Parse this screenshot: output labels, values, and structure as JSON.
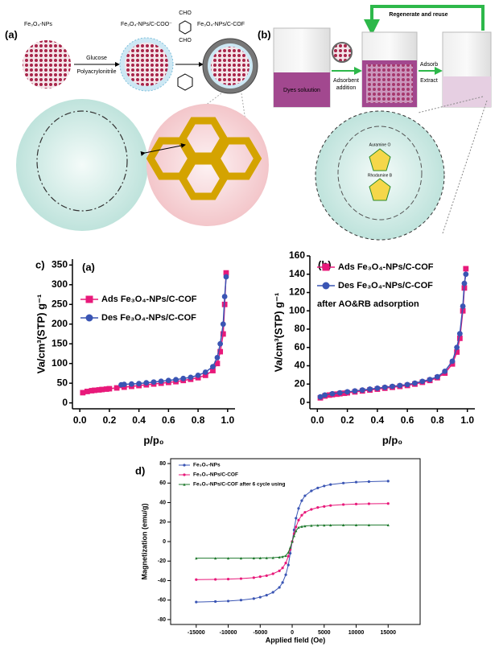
{
  "schematic": {
    "panel_a": "(a)",
    "core_label": "Fe₃O₄-NPs",
    "step1_top": "Glucose",
    "step1_bottom": "Polyacrylonitrile",
    "coated_label": "Fe₃O₄-NPs/C-COO⁻",
    "cof_label": "Fe₃O₄-NPs/C-COF",
    "aldehyde_top": "CHO",
    "aldehyde_bottom": "CHO",
    "panel_b": "(b)",
    "regenerate": "Regenerate and reuse",
    "dye_solution": "Dyes soluution",
    "adsorbent_1": "Adsorbent",
    "adsorbent_2": "addition",
    "adsorb": "Adsorb",
    "extract": "Extract",
    "dye_1": "Auramine O",
    "dye_2": "Rhodamine B"
  },
  "chart_data": [
    {
      "type": "line",
      "figure_label": "c)",
      "panel_label": "(a)",
      "frame": "axes",
      "xlabel": "p/p₀",
      "ylabel": "Va/cm³(STP) g⁻¹",
      "xlim": [
        -0.05,
        1.05
      ],
      "xticks": [
        {
          "value": 0,
          "label": "0.0"
        },
        0.2,
        0.4,
        0.6,
        0.8,
        {
          "value": 1,
          "label": "1.0"
        }
      ],
      "ylim": [
        -15,
        365
      ],
      "yticks": [
        0,
        50,
        100,
        150,
        200,
        250,
        300,
        350
      ],
      "series": [
        {
          "name": "Ads Fe₃O₄-NPs/C-COF",
          "color": "#e8197a",
          "marker": "square",
          "x": [
            0.02,
            0.05,
            0.08,
            0.1,
            0.13,
            0.15,
            0.18,
            0.2,
            0.25,
            0.3,
            0.35,
            0.4,
            0.45,
            0.5,
            0.55,
            0.6,
            0.65,
            0.7,
            0.75,
            0.8,
            0.85,
            0.9,
            0.93,
            0.95,
            0.97,
            0.98,
            0.99
          ],
          "values": [
            26,
            29,
            31,
            32,
            33,
            34,
            35,
            36,
            38,
            40,
            42,
            44,
            46,
            48,
            50,
            52,
            54,
            57,
            60,
            64,
            70,
            82,
            100,
            130,
            175,
            250,
            330
          ]
        },
        {
          "name": "Des Fe₃O₄-NPs/C-COF",
          "color": "#3a55b4",
          "marker": "circle",
          "x": [
            0.99,
            0.98,
            0.97,
            0.95,
            0.93,
            0.9,
            0.85,
            0.8,
            0.75,
            0.7,
            0.65,
            0.6,
            0.55,
            0.5,
            0.45,
            0.4,
            0.35,
            0.3,
            0.28
          ],
          "values": [
            320,
            270,
            200,
            150,
            115,
            92,
            78,
            70,
            65,
            62,
            59,
            57,
            55,
            53,
            51,
            49,
            48,
            47,
            46
          ]
        }
      ]
    },
    {
      "type": "line",
      "panel_label": "(b)",
      "frame": "axes",
      "annotation": "after AO&RB adsorption",
      "xlabel": "p/p₀",
      "ylabel": "Va/cm³(STP) g⁻¹",
      "xlim": [
        -0.05,
        1.05
      ],
      "xticks": [
        {
          "value": 0,
          "label": "0.0"
        },
        0.2,
        0.4,
        0.6,
        0.8,
        {
          "value": 1,
          "label": "1.0"
        }
      ],
      "ylim": [
        -7,
        160
      ],
      "yticks": [
        0,
        20,
        40,
        60,
        80,
        100,
        120,
        140,
        160
      ],
      "series": [
        {
          "name": "Ads Fe₃O₄-NPs/C-COF",
          "color": "#e8197a",
          "marker": "square",
          "x": [
            0.02,
            0.05,
            0.08,
            0.1,
            0.13,
            0.15,
            0.18,
            0.2,
            0.25,
            0.3,
            0.35,
            0.4,
            0.45,
            0.5,
            0.55,
            0.6,
            0.65,
            0.7,
            0.75,
            0.8,
            0.85,
            0.9,
            0.93,
            0.95,
            0.97,
            0.98,
            0.99
          ],
          "values": [
            5,
            7,
            8,
            8.5,
            9,
            9.5,
            10,
            10.5,
            11.5,
            12.5,
            13.5,
            14.5,
            15.5,
            16.5,
            17.5,
            18.5,
            20,
            22,
            24,
            27,
            32,
            42,
            55,
            70,
            100,
            125,
            146
          ]
        },
        {
          "name": "Des Fe₃O₄-NPs/C-COF",
          "color": "#3a55b4",
          "marker": "circle",
          "x": [
            0.99,
            0.98,
            0.97,
            0.95,
            0.93,
            0.9,
            0.85,
            0.8,
            0.75,
            0.7,
            0.65,
            0.6,
            0.55,
            0.5,
            0.45,
            0.4,
            0.35,
            0.3,
            0.25,
            0.2,
            0.15,
            0.1,
            0.05,
            0.02
          ],
          "values": [
            140,
            130,
            105,
            75,
            60,
            45,
            34,
            28,
            25,
            23,
            21,
            19.5,
            18.5,
            17.5,
            16.5,
            15.5,
            14.5,
            13.5,
            12.5,
            11.5,
            10.5,
            9.5,
            8,
            6
          ]
        }
      ]
    },
    {
      "type": "line",
      "figure_label": "d)",
      "frame": "box",
      "xlabel": "Applied field (Oe)",
      "ylabel": "Magnetization (emu/g)",
      "xlim": [
        -19000,
        20000
      ],
      "xticks": [
        -15000,
        -10000,
        -5000,
        0,
        5000,
        10000,
        15000
      ],
      "ylim": [
        -85,
        85
      ],
      "yticks": [
        -80,
        -60,
        -40,
        -20,
        0,
        20,
        40,
        60,
        80
      ],
      "series": [
        {
          "name": "Fe₃O₄-NPs",
          "color": "#3a55b4",
          "marker": "circle",
          "x": [
            -15000,
            -12000,
            -10000,
            -8000,
            -6000,
            -5000,
            -4000,
            -3000,
            -2000,
            -1500,
            -1000,
            -600,
            -300,
            0,
            300,
            600,
            1000,
            1500,
            2000,
            3000,
            4000,
            5000,
            6000,
            8000,
            10000,
            12000,
            15000
          ],
          "values": [
            -62,
            -61.5,
            -61,
            -60,
            -58.5,
            -57,
            -55,
            -52,
            -47,
            -42,
            -34,
            -24,
            -12,
            0,
            12,
            24,
            34,
            42,
            47,
            52,
            55,
            57,
            58.5,
            60,
            61,
            61.5,
            62
          ]
        },
        {
          "name": "Fe₃O₄-NPs/C-COF",
          "color": "#e8197a",
          "marker": "circle",
          "x": [
            -15000,
            -12000,
            -10000,
            -8000,
            -6000,
            -5000,
            -4000,
            -3000,
            -2000,
            -1500,
            -1000,
            -600,
            -300,
            0,
            300,
            600,
            1000,
            1500,
            2000,
            3000,
            4000,
            5000,
            6000,
            8000,
            10000,
            12000,
            15000
          ],
          "values": [
            -39,
            -38.8,
            -38.5,
            -38,
            -37,
            -36,
            -35,
            -33,
            -30,
            -27,
            -22,
            -15,
            -8,
            0,
            8,
            15,
            22,
            27,
            30,
            33,
            35,
            36,
            37,
            38,
            38.5,
            38.8,
            39
          ]
        },
        {
          "name": "Fe₃O₄-NPs/C-COF after 6 cycle using",
          "color": "#1f7a2e",
          "marker": "triangle",
          "x": [
            -15000,
            -12000,
            -10000,
            -8000,
            -6000,
            -5000,
            -4000,
            -3000,
            -2000,
            -1500,
            -1000,
            -600,
            -300,
            0,
            300,
            600,
            1000,
            1500,
            2000,
            3000,
            4000,
            5000,
            6000,
            8000,
            10000,
            12000,
            15000
          ],
          "values": [
            -17,
            -17,
            -17,
            -17,
            -16.9,
            -16.8,
            -16.7,
            -16.5,
            -16,
            -15.5,
            -14.5,
            -11,
            -6,
            0,
            6,
            11,
            14.5,
            15.5,
            16,
            16.5,
            16.7,
            16.8,
            16.9,
            17,
            17,
            17,
            17
          ]
        }
      ]
    }
  ]
}
